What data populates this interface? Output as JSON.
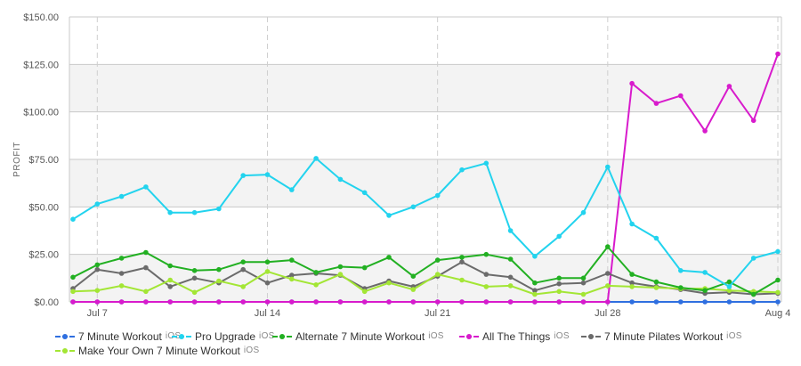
{
  "chart_data": {
    "type": "line",
    "ylabel": "PROFIT",
    "ylim": [
      0,
      150
    ],
    "y_ticks": [
      "$0.00",
      "$25.00",
      "$50.00",
      "$75.00",
      "$100.00",
      "$125.00",
      "$150.00"
    ],
    "y_tick_values": [
      0,
      25,
      50,
      75,
      100,
      125,
      150
    ],
    "x_start": "2014-07-06",
    "x_end": "2014-08-04",
    "x_ticks": [
      {
        "label": "Jul 7",
        "date": "2014-07-07"
      },
      {
        "label": "Jul 14",
        "date": "2014-07-14"
      },
      {
        "label": "Jul 21",
        "date": "2014-07-21"
      },
      {
        "label": "Jul 28",
        "date": "2014-07-28"
      },
      {
        "label": "Aug 4",
        "date": "2014-08-04"
      }
    ],
    "legend_position": "bottom",
    "grid": true,
    "series": [
      {
        "name": "7 Minute Workout",
        "platform": "iOS",
        "color": "#2f6fe0",
        "values": [
          0,
          0,
          0,
          0,
          0,
          0,
          0,
          0,
          0,
          0,
          0,
          0,
          0,
          0,
          0,
          0,
          0,
          0,
          0,
          0,
          0,
          0,
          0,
          0,
          0,
          0,
          0,
          0,
          0,
          0
        ]
      },
      {
        "name": "Pro Upgrade",
        "platform": "iOS",
        "color": "#22d3ee",
        "values": [
          43.5,
          51.5,
          55.5,
          60.5,
          47,
          47,
          49,
          66.5,
          67,
          59,
          75.5,
          64.5,
          57.5,
          45.5,
          50,
          56,
          69.5,
          73,
          37.5,
          24,
          34.5,
          47,
          71,
          41,
          33.5,
          16.5,
          15.5,
          8,
          23,
          26.5
        ]
      },
      {
        "name": "Alternate 7 Minute Workout",
        "platform": "iOS",
        "color": "#22b022",
        "values": [
          13,
          19.5,
          23,
          26,
          19,
          16.5,
          17,
          21,
          21,
          22,
          15.5,
          18.5,
          18,
          23.5,
          13.5,
          22,
          23.5,
          25,
          22.5,
          10,
          12.5,
          12.5,
          29,
          14.5,
          10.5,
          7.5,
          6,
          10.5,
          4,
          11.5
        ]
      },
      {
        "name": "All The Things",
        "platform": "iOS",
        "color": "#d81bcc",
        "values": [
          0,
          0,
          0,
          0,
          0,
          0,
          0,
          0,
          0,
          0,
          0,
          0,
          0,
          0,
          0,
          0,
          0,
          0,
          0,
          0,
          0,
          0,
          0,
          115,
          104.5,
          108.5,
          90,
          113.5,
          95.5,
          130.5
        ]
      },
      {
        "name": "7 Minute Pilates Workout",
        "platform": "iOS",
        "color": "#6b6b6b",
        "values": [
          7,
          17,
          15,
          18,
          8,
          12.5,
          10,
          17,
          10,
          14,
          15,
          14,
          7,
          11,
          8,
          13.5,
          21,
          14.5,
          13,
          6,
          9.5,
          10,
          15,
          10,
          8,
          6.5,
          4.5,
          5,
          4,
          4.5
        ]
      },
      {
        "name": "Make Your Own 7 Minute Workout",
        "platform": "iOS",
        "color": "#a3e635",
        "values": [
          5.5,
          6,
          8.5,
          5.5,
          11.5,
          5,
          11,
          8,
          16,
          12,
          9,
          14.5,
          5.5,
          10,
          6.5,
          14.5,
          11.5,
          8,
          8.5,
          4,
          5.5,
          4,
          8.5,
          8,
          7.5,
          7,
          7,
          6,
          5.5,
          5
        ]
      }
    ]
  }
}
